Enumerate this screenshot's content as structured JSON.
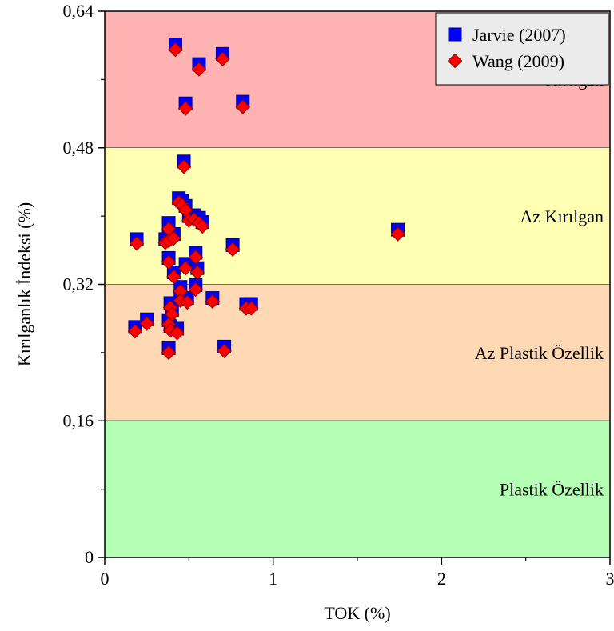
{
  "chart_data": {
    "type": "scatter",
    "xlabel": "TOK (%)",
    "ylabel": "Kırılganlık İndeksi (%)",
    "xlim": [
      0,
      3
    ],
    "ylim": [
      0,
      0.64
    ],
    "x_ticks": [
      {
        "value": 0,
        "label": "0"
      },
      {
        "value": 1,
        "label": "1"
      },
      {
        "value": 2,
        "label": "2"
      },
      {
        "value": 3,
        "label": "3"
      }
    ],
    "y_ticks": [
      {
        "value": 0,
        "label": "0"
      },
      {
        "value": 0.16,
        "label": "0,16"
      },
      {
        "value": 0.32,
        "label": "0,32"
      },
      {
        "value": 0.48,
        "label": "0,48"
      },
      {
        "value": 0.64,
        "label": "0,64"
      }
    ],
    "x_minor_ticks": [
      0.5,
      1.5,
      2.5
    ],
    "y_minor_ticks": [
      0.08,
      0.24,
      0.4,
      0.56
    ],
    "zones": [
      {
        "label": "Kırılgan",
        "from": 0.48,
        "to": 0.64,
        "color": "#ffb2b2"
      },
      {
        "label": "Az Kırılgan",
        "from": 0.32,
        "to": 0.48,
        "color": "#ffffb4"
      },
      {
        "label": "Az Plastik Özellik",
        "from": 0.16,
        "to": 0.32,
        "color": "#fed9b4"
      },
      {
        "label": "Plastik Özellik",
        "from": 0,
        "to": 0.16,
        "color": "#b4ffb4"
      }
    ],
    "legend_position": "top-right",
    "series": [
      {
        "name": "Jarvie (2007)",
        "marker": "square",
        "color": "#0000ff",
        "points": [
          [
            0.42,
            0.601
          ],
          [
            0.56,
            0.578
          ],
          [
            0.7,
            0.59
          ],
          [
            0.48,
            0.532
          ],
          [
            0.82,
            0.534
          ],
          [
            0.47,
            0.464
          ],
          [
            0.44,
            0.421
          ],
          [
            0.46,
            0.418
          ],
          [
            0.48,
            0.412
          ],
          [
            0.5,
            0.4
          ],
          [
            0.53,
            0.401
          ],
          [
            0.56,
            0.398
          ],
          [
            0.58,
            0.393
          ],
          [
            0.38,
            0.392
          ],
          [
            0.19,
            0.373
          ],
          [
            0.36,
            0.373
          ],
          [
            0.38,
            0.376
          ],
          [
            0.41,
            0.379
          ],
          [
            0.76,
            0.366
          ],
          [
            0.54,
            0.357
          ],
          [
            0.38,
            0.351
          ],
          [
            0.48,
            0.344
          ],
          [
            0.55,
            0.339
          ],
          [
            0.41,
            0.334
          ],
          [
            0.45,
            0.317
          ],
          [
            0.54,
            0.319
          ],
          [
            0.45,
            0.306
          ],
          [
            0.49,
            0.304
          ],
          [
            0.64,
            0.304
          ],
          [
            0.39,
            0.298
          ],
          [
            0.4,
            0.29
          ],
          [
            0.38,
            0.278
          ],
          [
            0.39,
            0.271
          ],
          [
            0.84,
            0.297
          ],
          [
            0.87,
            0.297
          ],
          [
            0.25,
            0.279
          ],
          [
            0.18,
            0.27
          ],
          [
            0.43,
            0.268
          ],
          [
            0.38,
            0.245
          ],
          [
            0.71,
            0.247
          ],
          [
            1.74,
            0.384
          ]
        ]
      },
      {
        "name": "Wang (2009)",
        "marker": "diamond",
        "color": "#ff0000",
        "points": [
          [
            0.42,
            0.595
          ],
          [
            0.56,
            0.572
          ],
          [
            0.7,
            0.584
          ],
          [
            0.48,
            0.526
          ],
          [
            0.82,
            0.528
          ],
          [
            0.47,
            0.458
          ],
          [
            0.44,
            0.416
          ],
          [
            0.46,
            0.413
          ],
          [
            0.48,
            0.407
          ],
          [
            0.5,
            0.395
          ],
          [
            0.53,
            0.396
          ],
          [
            0.56,
            0.392
          ],
          [
            0.58,
            0.388
          ],
          [
            0.38,
            0.385
          ],
          [
            0.19,
            0.368
          ],
          [
            0.36,
            0.369
          ],
          [
            0.38,
            0.371
          ],
          [
            0.41,
            0.374
          ],
          [
            0.76,
            0.361
          ],
          [
            0.54,
            0.352
          ],
          [
            0.38,
            0.346
          ],
          [
            0.48,
            0.339
          ],
          [
            0.55,
            0.334
          ],
          [
            0.41,
            0.329
          ],
          [
            0.45,
            0.312
          ],
          [
            0.54,
            0.314
          ],
          [
            0.45,
            0.301
          ],
          [
            0.49,
            0.299
          ],
          [
            0.64,
            0.3
          ],
          [
            0.39,
            0.293
          ],
          [
            0.4,
            0.285
          ],
          [
            0.38,
            0.273
          ],
          [
            0.39,
            0.266
          ],
          [
            0.84,
            0.292
          ],
          [
            0.87,
            0.292
          ],
          [
            0.25,
            0.274
          ],
          [
            0.18,
            0.265
          ],
          [
            0.43,
            0.263
          ],
          [
            0.38,
            0.24
          ],
          [
            0.71,
            0.242
          ],
          [
            1.74,
            0.379
          ]
        ]
      }
    ]
  }
}
